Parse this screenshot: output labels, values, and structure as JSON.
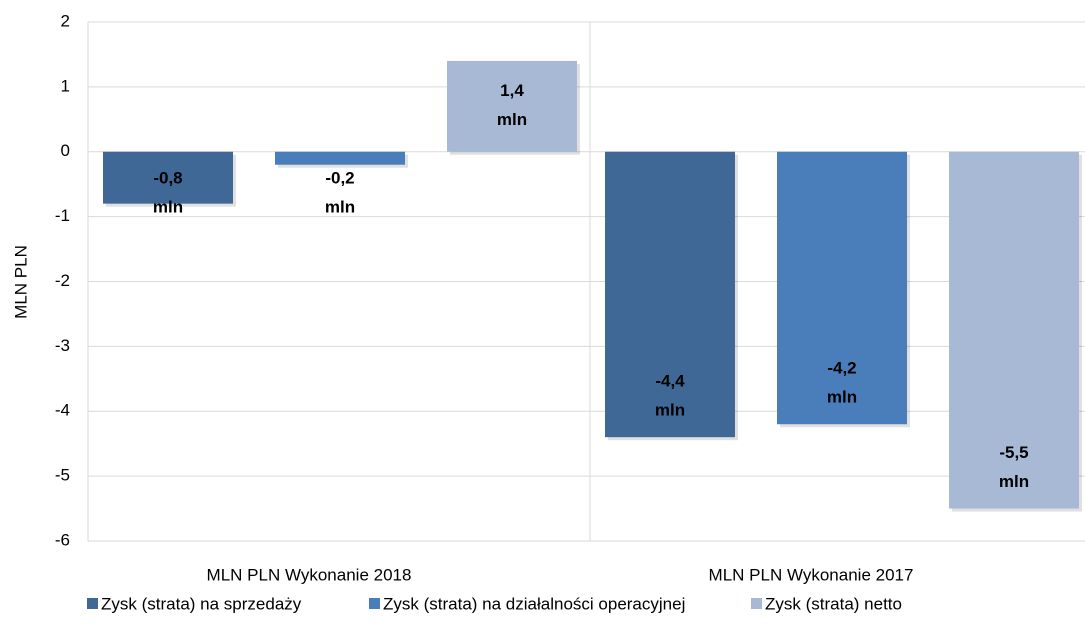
{
  "chart_data": {
    "type": "bar",
    "y_label": "MLN PLN",
    "categories": [
      "MLN PLN Wykonanie 2018",
      "MLN PLN Wykonanie 2017"
    ],
    "series": [
      {
        "name": "Zysk (strata) na sprzedaży",
        "color": "#3f6896",
        "values": [
          -0.8,
          -4.4
        ],
        "value_labels": [
          "-0,8 mln",
          "-4,4 mln"
        ]
      },
      {
        "name": "Zysk (strata) na działalności operacyjnej",
        "color": "#4a7ebb",
        "values": [
          -0.2,
          -4.2
        ],
        "value_labels": [
          "-0,2 mln",
          "-4,2 mln"
        ]
      },
      {
        "name": "Zysk (strata) netto",
        "color": "#a8b9d6",
        "values": [
          1.4,
          -5.5
        ],
        "value_labels": [
          "1,4 mln",
          "-5,5 mln"
        ]
      }
    ],
    "ylim": [
      -6,
      2
    ],
    "yticks": [
      -6,
      -5,
      -4,
      -3,
      -2,
      -1,
      0,
      1,
      2
    ],
    "grid": true,
    "legend": "bottom"
  }
}
